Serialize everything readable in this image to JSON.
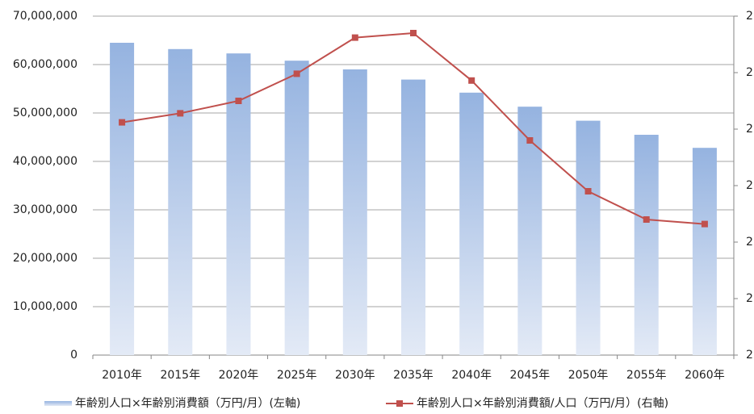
{
  "chart_data": {
    "type": "bar_line",
    "categories": [
      "2010年",
      "2015年",
      "2020年",
      "2025年",
      "2030年",
      "2035年",
      "2040年",
      "2045年",
      "2050年",
      "2055年",
      "2060年"
    ],
    "series": [
      {
        "name": "年齢別人口×年齢別消費額（万円/月）(左軸)",
        "type": "bar",
        "color": "#95b3e0",
        "values": [
          64500000,
          63200000,
          62300000,
          60800000,
          59000000,
          56900000,
          54200000,
          51300000,
          48400000,
          45500000,
          42800000
        ]
      },
      {
        "name": "年齢別人口×年齢別消費額/人口（万円/月）(右軸)",
        "type": "line",
        "axis": "y2",
        "color": "#c0504d",
        "values": [
          2.206,
          2.214,
          2.225,
          2.249,
          2.281,
          2.285,
          2.243,
          2.19,
          2.145,
          2.12,
          2.116
        ]
      }
    ],
    "ylim": [
      0,
      70000000
    ],
    "yticks": [
      0,
      {
        "value": 10000000,
        "label": "10,000,000"
      },
      {
        "value": 20000000,
        "label": "20,000,000"
      },
      {
        "value": 30000000,
        "label": "30,000,000"
      },
      {
        "value": 40000000,
        "label": "40,000,000"
      },
      {
        "value": 50000000,
        "label": "50,000,000"
      },
      {
        "value": 60000000,
        "label": "60,000,000"
      },
      {
        "value": 70000000,
        "label": "70,000,000"
      }
    ],
    "y2lim": [
      2.0,
      2.3
    ],
    "y2ticks": [
      {
        "value": 2.0,
        "label": "2"
      },
      {
        "value": 2.05,
        "label": "2"
      },
      {
        "value": 2.1,
        "label": "2"
      },
      {
        "value": 2.15,
        "label": "2"
      },
      {
        "value": 2.2,
        "label": "2"
      },
      {
        "value": 2.25,
        "label": "2"
      },
      {
        "value": 2.3,
        "label": "2"
      }
    ],
    "grid": true,
    "legend": "bottom"
  }
}
